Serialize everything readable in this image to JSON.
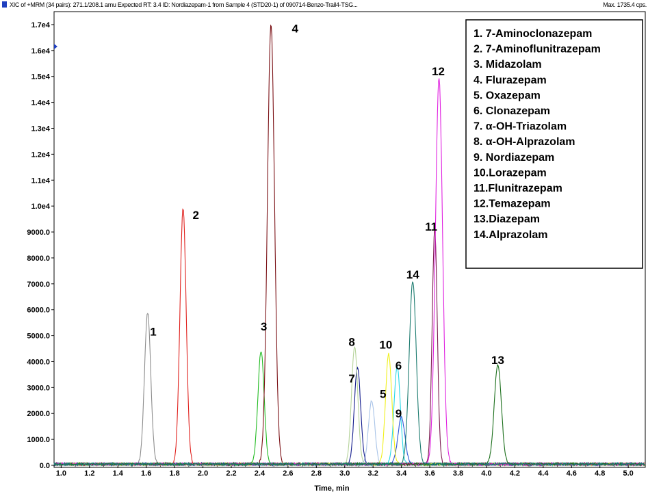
{
  "header": {
    "title": "XIC of +MRM (34 pairs): 271.1/208.1 amu Expected RT: 3.4 ID: Nordiazepam-1 from Sample 4 (STD20-1) of 090714-Benzo-Trail4-TSG...",
    "max_text": "Max. 1735.4 cps.",
    "marker_color": "#1f3fbf"
  },
  "chart_data": {
    "type": "line",
    "xlabel": "Time, min",
    "ylabel": "",
    "xlim": [
      0.95,
      5.12
    ],
    "ylim": [
      0,
      17500
    ],
    "x_ticks": [
      1.0,
      1.2,
      1.4,
      1.6,
      1.8,
      2.0,
      2.2,
      2.4,
      2.6,
      2.8,
      3.0,
      3.2,
      3.4,
      3.6,
      3.8,
      4.0,
      4.2,
      4.4,
      4.6,
      4.8,
      5.0
    ],
    "x_tick_labels": [
      "1.0",
      "1.2",
      "1.4",
      "1.6",
      "1.8",
      "2.0",
      "2.2",
      "2.4",
      "2.6",
      "2.8",
      "3.0",
      "3.2",
      "3.4",
      "3.6",
      "3.8",
      "4.0",
      "4.2",
      "4.4",
      "4.6",
      "4.8",
      "5.0"
    ],
    "y_ticks": [
      0,
      1000,
      2000,
      3000,
      4000,
      5000,
      6000,
      7000,
      8000,
      9000,
      10000,
      11000,
      12000,
      13000,
      14000,
      15000,
      16000,
      17000
    ],
    "y_tick_labels": [
      "0.0",
      "1000.0",
      "2000.0",
      "3000.0",
      "4000.0",
      "5000.0",
      "6000.0",
      "7000.0",
      "8000.0",
      "9000.0",
      "1.0e4",
      "1.1e4",
      "1.2e4",
      "1.3e4",
      "1.4e4",
      "1.5e4",
      "1.6e4",
      "1.7e4"
    ],
    "grid": false,
    "legend_position": "top-right",
    "legend": [
      "1. 7-Aminoclonazepam",
      "2. 7-Aminoflunitrazepam",
      "3. Midazolam",
      "4. Flurazepam",
      "5. Oxazepam",
      "6. Clonazepam",
      "7. α-OH-Triazolam",
      "8. α-OH-Alprazolam",
      "9. Nordiazepam",
      "10.Lorazepam",
      "11.Flunitrazepam",
      "12.Temazepam",
      "13.Diazepam",
      "14.Alprazolam"
    ],
    "series": [
      {
        "label": "1",
        "color": "#8c8c8c",
        "rt": 1.61,
        "height": 5850,
        "width": 0.022,
        "label_x": 1.65,
        "label_y": 5000
      },
      {
        "label": "2",
        "color": "#e0201c",
        "rt": 1.86,
        "height": 9850,
        "width": 0.022,
        "label_x": 1.95,
        "label_y": 9500
      },
      {
        "label": "3",
        "color": "#22bb22",
        "rt": 2.41,
        "height": 4350,
        "width": 0.022,
        "label_x": 2.43,
        "label_y": 5200
      },
      {
        "label": "4",
        "color": "#7a0f14",
        "rt": 2.48,
        "height": 16950,
        "width": 0.025,
        "label_x": 2.65,
        "label_y": 16700
      },
      {
        "label": "5",
        "color": "#a9c4e8",
        "rt": 3.19,
        "height": 2450,
        "width": 0.022,
        "label_x": 3.27,
        "label_y": 2600
      },
      {
        "label": "6",
        "color": "#28d7e6",
        "rt": 3.37,
        "height": 3800,
        "width": 0.022,
        "label_x": 3.38,
        "label_y": 3700
      },
      {
        "label": "7",
        "color": "#111a8c",
        "rt": 3.09,
        "height": 3750,
        "width": 0.022,
        "label_x": 3.05,
        "label_y": 3200
      },
      {
        "label": "8",
        "color": "#b5d39a",
        "rt": 3.07,
        "height": 4550,
        "width": 0.022,
        "label_x": 3.05,
        "label_y": 4600
      },
      {
        "label": "9",
        "color": "#2a56d6",
        "rt": 3.4,
        "height": 1800,
        "width": 0.025,
        "label_x": 3.38,
        "label_y": 1850
      },
      {
        "label": "10",
        "color": "#f0f01a",
        "rt": 3.31,
        "height": 4250,
        "width": 0.022,
        "label_x": 3.29,
        "label_y": 4500
      },
      {
        "label": "11",
        "color": "#7a1a4e",
        "rt": 3.635,
        "height": 9050,
        "width": 0.018,
        "label_x": 3.61,
        "label_y": 9050
      },
      {
        "label": "12",
        "color": "#e020e0",
        "rt": 3.665,
        "height": 14900,
        "width": 0.025,
        "label_x": 3.66,
        "label_y": 15050
      },
      {
        "label": "13",
        "color": "#1a6e1a",
        "rt": 4.08,
        "height": 3850,
        "width": 0.025,
        "label_x": 4.08,
        "label_y": 3900
      },
      {
        "label": "14",
        "color": "#1a7a6e",
        "rt": 3.48,
        "height": 7050,
        "width": 0.025,
        "label_x": 3.48,
        "label_y": 7200
      }
    ]
  }
}
